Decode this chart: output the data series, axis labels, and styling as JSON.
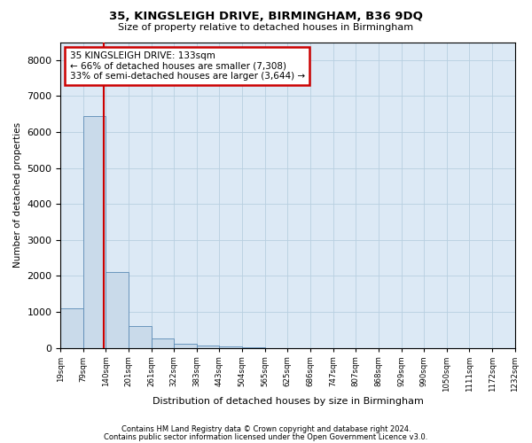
{
  "title1": "35, KINGSLEIGH DRIVE, BIRMINGHAM, B36 9DQ",
  "title2": "Size of property relative to detached houses in Birmingham",
  "xlabel": "Distribution of detached houses by size in Birmingham",
  "ylabel": "Number of detached properties",
  "annotation_line1": "35 KINGSLEIGH DRIVE: 133sqm",
  "annotation_line2": "← 66% of detached houses are smaller (7,308)",
  "annotation_line3": "33% of semi-detached houses are larger (3,644) →",
  "footer1": "Contains HM Land Registry data © Crown copyright and database right 2024.",
  "footer2": "Contains public sector information licensed under the Open Government Licence v3.0.",
  "property_size": 133,
  "bin_edges": [
    19,
    79,
    140,
    201,
    261,
    322,
    383,
    443,
    504,
    565,
    625,
    686,
    747,
    807,
    868,
    929,
    990,
    1050,
    1111,
    1172,
    1232
  ],
  "bar_heights": [
    1100,
    6450,
    2100,
    600,
    250,
    120,
    70,
    30,
    5,
    0,
    0,
    0,
    0,
    0,
    0,
    0,
    0,
    0,
    0,
    0
  ],
  "bar_color": "#c9daea",
  "bar_edge_color": "#5a8ab5",
  "vline_color": "#cc0000",
  "annotation_box_color": "#cc0000",
  "background_color": "#ffffff",
  "axes_bg_color": "#dce9f5",
  "grid_color": "#b8cfe0",
  "ylim": [
    0,
    8500
  ],
  "yticks": [
    0,
    1000,
    2000,
    3000,
    4000,
    5000,
    6000,
    7000,
    8000
  ]
}
